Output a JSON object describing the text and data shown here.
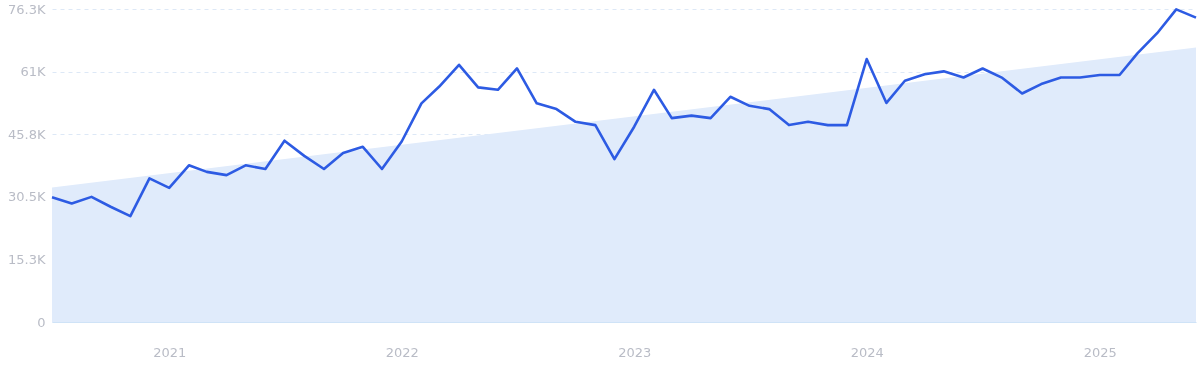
{
  "chart_data": {
    "type": "line",
    "x": [
      "2020-07",
      "2020-08",
      "2020-09",
      "2020-10",
      "2020-11",
      "2020-12",
      "2021-01",
      "2021-02",
      "2021-03",
      "2021-04",
      "2021-05",
      "2021-06",
      "2021-07",
      "2021-08",
      "2021-09",
      "2021-10",
      "2021-11",
      "2021-12",
      "2022-01",
      "2022-02",
      "2022-03",
      "2022-04",
      "2022-05",
      "2022-06",
      "2022-07",
      "2022-08",
      "2022-09",
      "2022-10",
      "2022-11",
      "2022-12",
      "2023-01",
      "2023-02",
      "2023-03",
      "2023-04",
      "2023-05",
      "2023-06",
      "2023-07",
      "2023-08",
      "2023-09",
      "2023-10",
      "2023-11",
      "2023-12",
      "2024-01",
      "2024-02",
      "2024-03",
      "2024-04",
      "2024-05",
      "2024-06",
      "2024-07",
      "2024-08",
      "2024-09",
      "2024-10",
      "2024-11",
      "2024-12",
      "2025-01",
      "2025-02",
      "2025-03",
      "2025-04",
      "2025-05",
      "2025-06"
    ],
    "series": [
      {
        "type": "area",
        "color": "#e0ebfb",
        "x": [
          "2020-07",
          "2025-06"
        ],
        "values": [
          32800,
          66900
        ]
      },
      {
        "color": "#2d5be3",
        "values": [
          30400,
          28900,
          30500,
          28100,
          25800,
          35000,
          32700,
          38200,
          36600,
          35800,
          38200,
          37300,
          44200,
          40500,
          37300,
          41200,
          42700,
          37300,
          44000,
          53300,
          57400,
          62700,
          57200,
          56600,
          61800,
          53300,
          51900,
          48800,
          48000,
          39700,
          47600,
          56600,
          49700,
          50300,
          49700,
          54900,
          52700,
          51900,
          48000,
          48800,
          48000,
          48000,
          64100,
          53400,
          58800,
          60400,
          61100,
          59600,
          61800,
          59500,
          55700,
          58000,
          59600,
          59600,
          60200,
          60200,
          65500,
          70400,
          76200,
          74200
        ]
      }
    ],
    "xlim": [
      "2020-07",
      "2025-06"
    ],
    "xticks": [
      "2021",
      "2022",
      "2023",
      "2024",
      "2025"
    ],
    "ylim": [
      0,
      76300
    ],
    "yticks": [
      0,
      {
        "value": 15260,
        "label": "15.3K"
      },
      {
        "value": 30520,
        "label": "30.5K"
      },
      {
        "value": 45780,
        "label": "45.8K"
      },
      {
        "value": 61040,
        "label": "61K"
      },
      {
        "value": 76300,
        "label": "76.3K"
      }
    ],
    "grid": "y"
  }
}
